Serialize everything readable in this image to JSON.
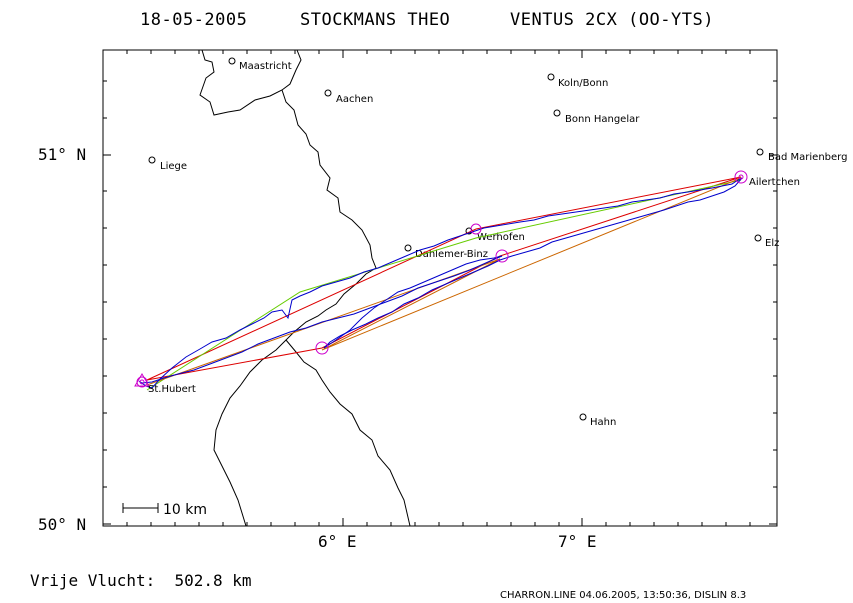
{
  "header": {
    "date": "18-05-2005",
    "pilot": "STOCKMANS THEO",
    "glider": "VENTUS 2CX (OO-YTS)"
  },
  "map": {
    "lat_labels": [
      "51° N",
      "50° N"
    ],
    "lon_labels": [
      "6° E",
      "7° E"
    ],
    "scale_label": "10 km",
    "places": [
      {
        "id": "maastricht",
        "name": "Maastricht"
      },
      {
        "id": "aachen",
        "name": "Aachen"
      },
      {
        "id": "koln",
        "name": "Koln/Bonn"
      },
      {
        "id": "bonn-hangelar",
        "name": "Bonn Hangelar"
      },
      {
        "id": "bad-marienberg",
        "name": "Bad Marienberg"
      },
      {
        "id": "liege",
        "name": "Liege"
      },
      {
        "id": "ailertchen",
        "name": "Ailertchen"
      },
      {
        "id": "werhofen",
        "name": "Werhofen"
      },
      {
        "id": "dahlemer-binz",
        "name": "Dahlemer-Binz"
      },
      {
        "id": "elz",
        "name": "Elz"
      },
      {
        "id": "st-hubert",
        "name": "St.Hubert"
      },
      {
        "id": "hahn",
        "name": "Hahn"
      }
    ],
    "colors": {
      "track": "#0000cc",
      "task_red": "#dd0000",
      "task_green": "#66cc00",
      "task_orange": "#cc6600",
      "turnpoint": "#cc00cc",
      "border": "#000000"
    }
  },
  "footer": {
    "distance": "Vrije Vlucht:  502.8 km",
    "credits": "CHARRON.LINE 04.06.2005, 13:50:36, DISLIN 8.3"
  }
}
